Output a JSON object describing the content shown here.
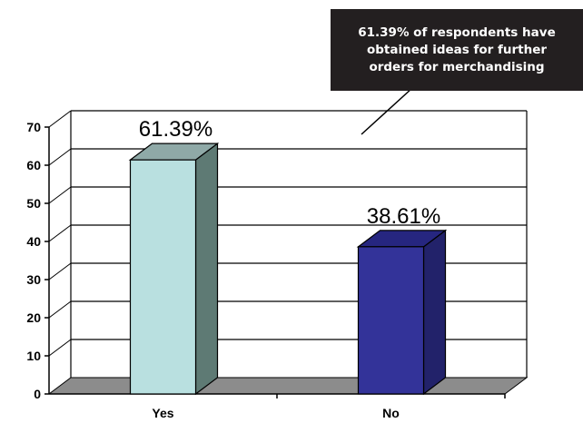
{
  "annotation": {
    "text": "61.39% of respondents have obtained ideas for further orders for merchandising"
  },
  "chart_data": {
    "type": "bar",
    "title": "",
    "xlabel": "",
    "ylabel": "",
    "categories": [
      "Yes",
      "No"
    ],
    "values": [
      61.39,
      38.61
    ],
    "data_labels": [
      "61.39%",
      "38.61%"
    ],
    "ylim": [
      0,
      70
    ],
    "yticks": [
      0,
      10,
      20,
      30,
      40,
      50,
      60,
      70
    ],
    "grid": true,
    "three_d": true,
    "legend": "none",
    "colors": {
      "bar_front": [
        "#b9e0e0",
        "#333399"
      ],
      "bar_side": [
        "#5e7a74",
        "#22226a"
      ],
      "bar_top": [
        "#8fa9a7",
        "#262680"
      ],
      "floor": "#8c8c8c",
      "gridline": "#000000"
    }
  }
}
